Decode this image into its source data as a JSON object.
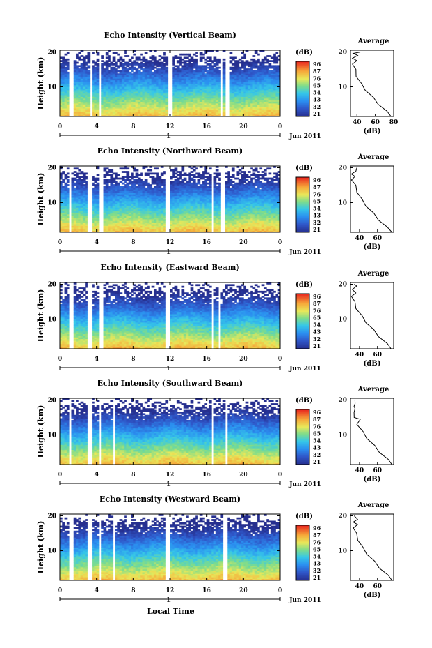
{
  "figure": {
    "xlabel": "Local Time",
    "date_label": "Jun 2011",
    "day_label": "1",
    "colorbar_unit": "(dB)",
    "avg_title": "Average",
    "avg_xlabel": "(dB)"
  },
  "chart_data": [
    {
      "type": "heatmap",
      "title": "Echo Intensity (Vertical Beam)",
      "ylabel": "Height (km)",
      "xticks": [
        "0",
        "4",
        "8",
        "12",
        "16",
        "20",
        "0"
      ],
      "yticks": [
        "10",
        "20"
      ],
      "xlim": [
        0,
        24
      ],
      "ylim": [
        1.5,
        20.5
      ],
      "colorbar_ticks": [
        "96",
        "87",
        "76",
        "65",
        "54",
        "43",
        "32",
        "21"
      ],
      "avg_xticks": [
        "40",
        "60",
        "80"
      ],
      "avg_xlim": [
        33,
        80
      ],
      "gaps_hours": [
        [
          1.1,
          1.5
        ],
        [
          3.2,
          3.6
        ],
        [
          4.2,
          4.6
        ],
        [
          11.7,
          12.2
        ],
        [
          17.4,
          17.7
        ],
        [
          18.1,
          18.4
        ]
      ],
      "profile": [
        [
          1.5,
          78
        ],
        [
          3,
          72
        ],
        [
          5,
          64
        ],
        [
          7,
          57
        ],
        [
          9,
          50
        ],
        [
          11,
          44
        ],
        [
          13,
          40
        ],
        [
          15,
          38
        ],
        [
          16.5,
          36
        ],
        [
          17.5,
          39
        ],
        [
          18.2,
          36
        ],
        [
          19,
          40
        ],
        [
          19.6,
          37
        ],
        [
          20,
          43
        ]
      ]
    },
    {
      "type": "heatmap",
      "title": "Echo Intensity (Northward Beam)",
      "ylabel": "Height (km)",
      "xticks": [
        "0",
        "4",
        "8",
        "12",
        "16",
        "20",
        "0"
      ],
      "yticks": [
        "10",
        "20"
      ],
      "xlim": [
        0,
        24
      ],
      "ylim": [
        1.5,
        20.5
      ],
      "colorbar_ticks": [
        "96",
        "87",
        "76",
        "65",
        "54",
        "43",
        "32",
        "21"
      ],
      "avg_xticks": [
        "40",
        "60"
      ],
      "avg_xlim": [
        30,
        78
      ],
      "gaps_hours": [
        [
          0.9,
          1.3
        ],
        [
          3.0,
          3.4
        ],
        [
          4.3,
          4.7
        ],
        [
          11.6,
          12.0
        ],
        [
          16.5,
          16.7
        ],
        [
          17.5,
          18.1
        ]
      ],
      "profile": [
        [
          1.5,
          77
        ],
        [
          3,
          70
        ],
        [
          5,
          62
        ],
        [
          7,
          55
        ],
        [
          9,
          48
        ],
        [
          11,
          42
        ],
        [
          13,
          38
        ],
        [
          15,
          35
        ],
        [
          16.5,
          32
        ],
        [
          17.5,
          34
        ],
        [
          18.2,
          32
        ],
        [
          19,
          35
        ],
        [
          20,
          38
        ]
      ]
    },
    {
      "type": "heatmap",
      "title": "Echo Intensity (Eastward Beam)",
      "ylabel": "Height (km)",
      "xticks": [
        "0",
        "4",
        "8",
        "12",
        "16",
        "20",
        "0"
      ],
      "yticks": [
        "10",
        "20"
      ],
      "xlim": [
        0,
        24
      ],
      "ylim": [
        1.5,
        20.5
      ],
      "colorbar_ticks": [
        "96",
        "87",
        "76",
        "65",
        "54",
        "43",
        "32",
        "21"
      ],
      "avg_xticks": [
        "40",
        "60"
      ],
      "avg_xlim": [
        30,
        78
      ],
      "gaps_hours": [
        [
          1.1,
          1.4
        ],
        [
          3.1,
          3.5
        ],
        [
          4.3,
          4.7
        ],
        [
          11.5,
          11.9
        ],
        [
          16.5,
          16.8
        ],
        [
          17.3,
          17.6
        ]
      ],
      "profile": [
        [
          1.5,
          76
        ],
        [
          3,
          70
        ],
        [
          5,
          62
        ],
        [
          7,
          55
        ],
        [
          9,
          48
        ],
        [
          11,
          42
        ],
        [
          13,
          37
        ],
        [
          15,
          34
        ],
        [
          16.5,
          32
        ],
        [
          17.5,
          35
        ],
        [
          18.5,
          33
        ],
        [
          19.5,
          36
        ],
        [
          20,
          35
        ]
      ]
    },
    {
      "type": "heatmap",
      "title": "Echo Intensity (Southward Beam)",
      "ylabel": "Height (km)",
      "xticks": [
        "0",
        "4",
        "8",
        "12",
        "16",
        "20",
        "0"
      ],
      "yticks": [
        "10",
        "20"
      ],
      "xlim": [
        0,
        24
      ],
      "ylim": [
        1.5,
        20.5
      ],
      "colorbar_ticks": [
        "96",
        "87",
        "76",
        "65",
        "54",
        "43",
        "32",
        "21"
      ],
      "avg_xticks": [
        "40",
        "60"
      ],
      "avg_xlim": [
        30,
        78
      ],
      "gaps_hours": [
        [
          1.0,
          1.3
        ],
        [
          3.1,
          3.5
        ],
        [
          4.3,
          4.6
        ],
        [
          5.8,
          6.1
        ],
        [
          16.6,
          16.8
        ],
        [
          17.9,
          18.3
        ]
      ],
      "profile": [
        [
          1.5,
          77
        ],
        [
          3,
          71
        ],
        [
          5,
          63
        ],
        [
          7,
          56
        ],
        [
          9,
          49
        ],
        [
          11,
          43
        ],
        [
          13,
          38
        ],
        [
          14.5,
          40
        ],
        [
          15,
          35
        ],
        [
          16.5,
          33
        ],
        [
          17.5,
          36
        ],
        [
          18.2,
          33
        ],
        [
          19,
          36
        ],
        [
          20,
          34
        ]
      ]
    },
    {
      "type": "heatmap",
      "title": "Echo Intensity (Westward Beam)",
      "ylabel": "Height (km)",
      "xticks": [
        "0",
        "4",
        "8",
        "12",
        "16",
        "20",
        "0"
      ],
      "yticks": [
        "10",
        "20"
      ],
      "xlim": [
        0,
        24
      ],
      "ylim": [
        1.5,
        20.5
      ],
      "colorbar_ticks": [
        "96",
        "87",
        "76",
        "65",
        "54",
        "43",
        "32",
        "21"
      ],
      "avg_xticks": [
        "40",
        "60"
      ],
      "avg_xlim": [
        30,
        78
      ],
      "gaps_hours": [
        [
          1.1,
          1.4
        ],
        [
          3.1,
          3.5
        ],
        [
          4.3,
          4.6
        ],
        [
          5.8,
          6.1
        ],
        [
          11.5,
          11.9
        ],
        [
          17.8,
          18.2
        ]
      ],
      "profile": [
        [
          1.5,
          77
        ],
        [
          3,
          71
        ],
        [
          5,
          63
        ],
        [
          7,
          56
        ],
        [
          9,
          49
        ],
        [
          11,
          43
        ],
        [
          13,
          39
        ],
        [
          15,
          36
        ],
        [
          16.5,
          34
        ],
        [
          17.5,
          37
        ],
        [
          18.2,
          34
        ],
        [
          19,
          37
        ],
        [
          20,
          35
        ]
      ]
    }
  ]
}
